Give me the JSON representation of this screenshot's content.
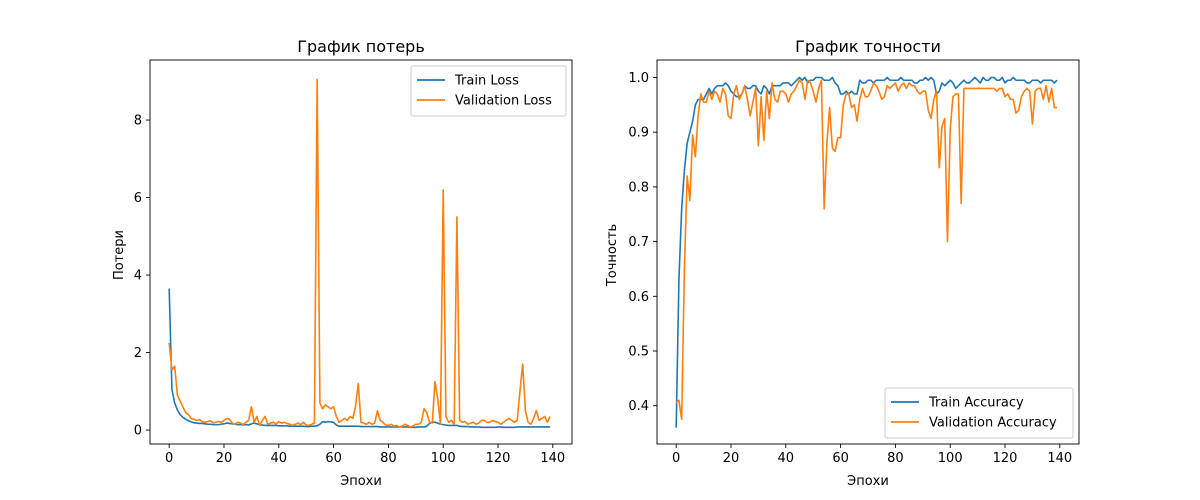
{
  "chart_data": [
    {
      "type": "line",
      "title": "График потерь",
      "xlabel": "Эпохи",
      "ylabel": "Потери",
      "xlim": [
        -7,
        147
      ],
      "ylim": [
        -0.36,
        9.55
      ],
      "xticks": [
        0,
        20,
        40,
        60,
        80,
        100,
        120,
        140
      ],
      "yticks": [
        0,
        2,
        4,
        6,
        8
      ],
      "legend_position": "top-right",
      "x": "epochs 0..139",
      "series": [
        {
          "name": "Train Loss",
          "color": "#1f77b4",
          "values": [
            3.65,
            1.05,
            0.7,
            0.52,
            0.4,
            0.33,
            0.28,
            0.24,
            0.21,
            0.19,
            0.18,
            0.17,
            0.17,
            0.16,
            0.15,
            0.15,
            0.14,
            0.14,
            0.14,
            0.15,
            0.16,
            0.18,
            0.17,
            0.16,
            0.15,
            0.14,
            0.14,
            0.13,
            0.14,
            0.13,
            0.16,
            0.18,
            0.16,
            0.14,
            0.13,
            0.12,
            0.12,
            0.12,
            0.12,
            0.12,
            0.11,
            0.11,
            0.11,
            0.11,
            0.1,
            0.1,
            0.1,
            0.1,
            0.1,
            0.1,
            0.09,
            0.09,
            0.1,
            0.1,
            0.11,
            0.15,
            0.22,
            0.2,
            0.22,
            0.21,
            0.2,
            0.13,
            0.1,
            0.1,
            0.1,
            0.1,
            0.1,
            0.1,
            0.1,
            0.1,
            0.09,
            0.09,
            0.09,
            0.09,
            0.09,
            0.09,
            0.09,
            0.08,
            0.08,
            0.08,
            0.08,
            0.08,
            0.08,
            0.08,
            0.08,
            0.08,
            0.08,
            0.08,
            0.07,
            0.07,
            0.07,
            0.08,
            0.08,
            0.08,
            0.1,
            0.17,
            0.21,
            0.2,
            0.18,
            0.15,
            0.14,
            0.13,
            0.12,
            0.12,
            0.12,
            0.12,
            0.1,
            0.09,
            0.09,
            0.09,
            0.08,
            0.08,
            0.08,
            0.08,
            0.07,
            0.07,
            0.07,
            0.07,
            0.07,
            0.07,
            0.08,
            0.08,
            0.07,
            0.07,
            0.07,
            0.07,
            0.07,
            0.08,
            0.08,
            0.08,
            0.08,
            0.08,
            0.08,
            0.08,
            0.08,
            0.08,
            0.08,
            0.08,
            0.08,
            0.08
          ]
        },
        {
          "name": "Validation Loss",
          "color": "#ff7f0e",
          "values": [
            2.25,
            1.55,
            1.65,
            0.9,
            0.75,
            0.6,
            0.45,
            0.4,
            0.3,
            0.28,
            0.25,
            0.27,
            0.22,
            0.2,
            0.22,
            0.24,
            0.19,
            0.2,
            0.22,
            0.2,
            0.25,
            0.3,
            0.28,
            0.18,
            0.15,
            0.2,
            0.18,
            0.14,
            0.2,
            0.25,
            0.6,
            0.2,
            0.35,
            0.12,
            0.25,
            0.35,
            0.15,
            0.18,
            0.2,
            0.15,
            0.22,
            0.18,
            0.2,
            0.17,
            0.15,
            0.12,
            0.15,
            0.18,
            0.14,
            0.2,
            0.13,
            0.12,
            0.15,
            0.18,
            9.05,
            0.7,
            0.55,
            0.65,
            0.6,
            0.55,
            0.6,
            0.35,
            0.2,
            0.25,
            0.3,
            0.25,
            0.35,
            0.3,
            0.6,
            1.2,
            0.2,
            0.18,
            0.15,
            0.2,
            0.15,
            0.18,
            0.5,
            0.25,
            0.2,
            0.13,
            0.12,
            0.15,
            0.1,
            0.12,
            0.08,
            0.1,
            0.15,
            0.12,
            0.08,
            0.1,
            0.15,
            0.15,
            0.2,
            0.55,
            0.45,
            0.2,
            0.18,
            1.25,
            0.8,
            0.15,
            6.2,
            0.35,
            0.2,
            0.25,
            0.15,
            5.5,
            0.25,
            0.2,
            0.22,
            0.15,
            0.18,
            0.2,
            0.15,
            0.18,
            0.25,
            0.25,
            0.2,
            0.2,
            0.25,
            0.22,
            0.2,
            0.15,
            0.2,
            0.25,
            0.3,
            0.25,
            0.2,
            0.25,
            1.0,
            1.7,
            0.5,
            0.2,
            0.15,
            0.3,
            0.5,
            0.25,
            0.3,
            0.35,
            0.2,
            0.35
          ]
        }
      ]
    },
    {
      "type": "line",
      "title": "График точности",
      "xlabel": "Эпохи",
      "ylabel": "Точность",
      "xlim": [
        -7,
        147
      ],
      "ylim": [
        0.33,
        1.032
      ],
      "xticks": [
        0,
        20,
        40,
        60,
        80,
        100,
        120,
        140
      ],
      "yticks": [
        0.4,
        0.5,
        0.6,
        0.7,
        0.8,
        0.9,
        1.0
      ],
      "legend_position": "bottom-right",
      "x": "epochs 0..139",
      "series": [
        {
          "name": "Train Accuracy",
          "color": "#1f77b4",
          "values": [
            0.36,
            0.63,
            0.76,
            0.83,
            0.88,
            0.9,
            0.92,
            0.95,
            0.96,
            0.96,
            0.96,
            0.97,
            0.98,
            0.97,
            0.98,
            0.985,
            0.985,
            0.985,
            0.99,
            0.985,
            0.975,
            0.97,
            0.965,
            0.965,
            0.97,
            0.985,
            0.98,
            0.98,
            0.985,
            0.985,
            0.975,
            0.97,
            0.985,
            0.98,
            0.97,
            0.985,
            0.985,
            0.985,
            0.985,
            0.99,
            0.99,
            0.99,
            0.985,
            0.99,
            0.995,
            1.0,
            0.995,
            1.0,
            0.99,
            0.995,
            0.995,
            1.0,
            1.0,
            1.0,
            0.995,
            0.995,
            0.995,
            1.0,
            0.99,
            0.985,
            0.97,
            0.97,
            0.975,
            0.97,
            0.975,
            0.97,
            0.97,
            0.995,
            0.99,
            0.99,
            0.995,
            0.995,
            0.99,
            0.995,
            0.995,
            0.995,
            0.995,
            1.0,
            0.995,
            0.995,
            0.995,
            0.995,
            1.0,
            0.995,
            0.995,
            0.995,
            0.995,
            0.99,
            0.99,
            0.995,
            0.995,
            1.0,
            0.995,
            1.0,
            0.995,
            0.97,
            0.975,
            0.99,
            0.985,
            0.99,
            0.995,
            0.99,
            0.98,
            0.985,
            0.99,
            0.995,
            0.99,
            0.99,
            0.995,
            1.0,
            0.995,
            0.99,
            1.0,
            0.995,
            0.995,
            1.0,
            1.0,
            0.995,
            0.995,
            1.0,
            0.99,
            0.995,
            0.995,
            1.0,
            0.995,
            0.995,
            0.995,
            0.995,
            0.99,
            0.99,
            0.995,
            0.995,
            0.995,
            0.99,
            0.995,
            0.995,
            0.995,
            0.995,
            0.99,
            0.995
          ]
        },
        {
          "name": "Validation Accuracy",
          "color": "#ff7f0e",
          "values": [
            0.405,
            0.41,
            0.375,
            0.65,
            0.82,
            0.775,
            0.895,
            0.855,
            0.93,
            0.97,
            0.955,
            0.955,
            0.975,
            0.96,
            0.975,
            0.97,
            0.955,
            0.98,
            0.97,
            0.93,
            0.925,
            0.97,
            0.985,
            0.96,
            0.97,
            0.985,
            0.96,
            0.93,
            0.955,
            0.98,
            0.875,
            0.965,
            0.885,
            0.975,
            0.925,
            0.99,
            0.96,
            0.955,
            0.975,
            0.975,
            0.97,
            0.955,
            0.97,
            0.975,
            0.985,
            0.995,
            0.99,
            0.96,
            0.995,
            0.99,
            0.975,
            0.955,
            0.98,
            0.995,
            0.76,
            0.88,
            0.945,
            0.87,
            0.865,
            0.89,
            0.89,
            0.95,
            0.97,
            0.97,
            0.945,
            0.95,
            0.92,
            0.96,
            0.98,
            0.965,
            0.965,
            0.975,
            0.99,
            0.985,
            0.975,
            0.96,
            0.965,
            0.985,
            0.98,
            0.985,
            0.99,
            0.975,
            0.985,
            0.99,
            0.98,
            0.99,
            0.985,
            0.985,
            0.975,
            0.97,
            0.975,
            0.975,
            0.94,
            0.925,
            0.96,
            0.975,
            0.835,
            0.91,
            0.925,
            0.7,
            0.905,
            0.965,
            0.97,
            0.97,
            0.77,
            0.98,
            0.98,
            0.98,
            0.98,
            0.98,
            0.98,
            0.98,
            0.98,
            0.98,
            0.98,
            0.98,
            0.98,
            0.975,
            0.98,
            0.98,
            0.965,
            0.97,
            0.96,
            0.96,
            0.935,
            0.94,
            0.965,
            0.975,
            0.98,
            0.975,
            0.915,
            0.975,
            0.98,
            0.98,
            0.96,
            0.985,
            0.955,
            0.98,
            0.945,
            0.945
          ]
        }
      ]
    }
  ]
}
